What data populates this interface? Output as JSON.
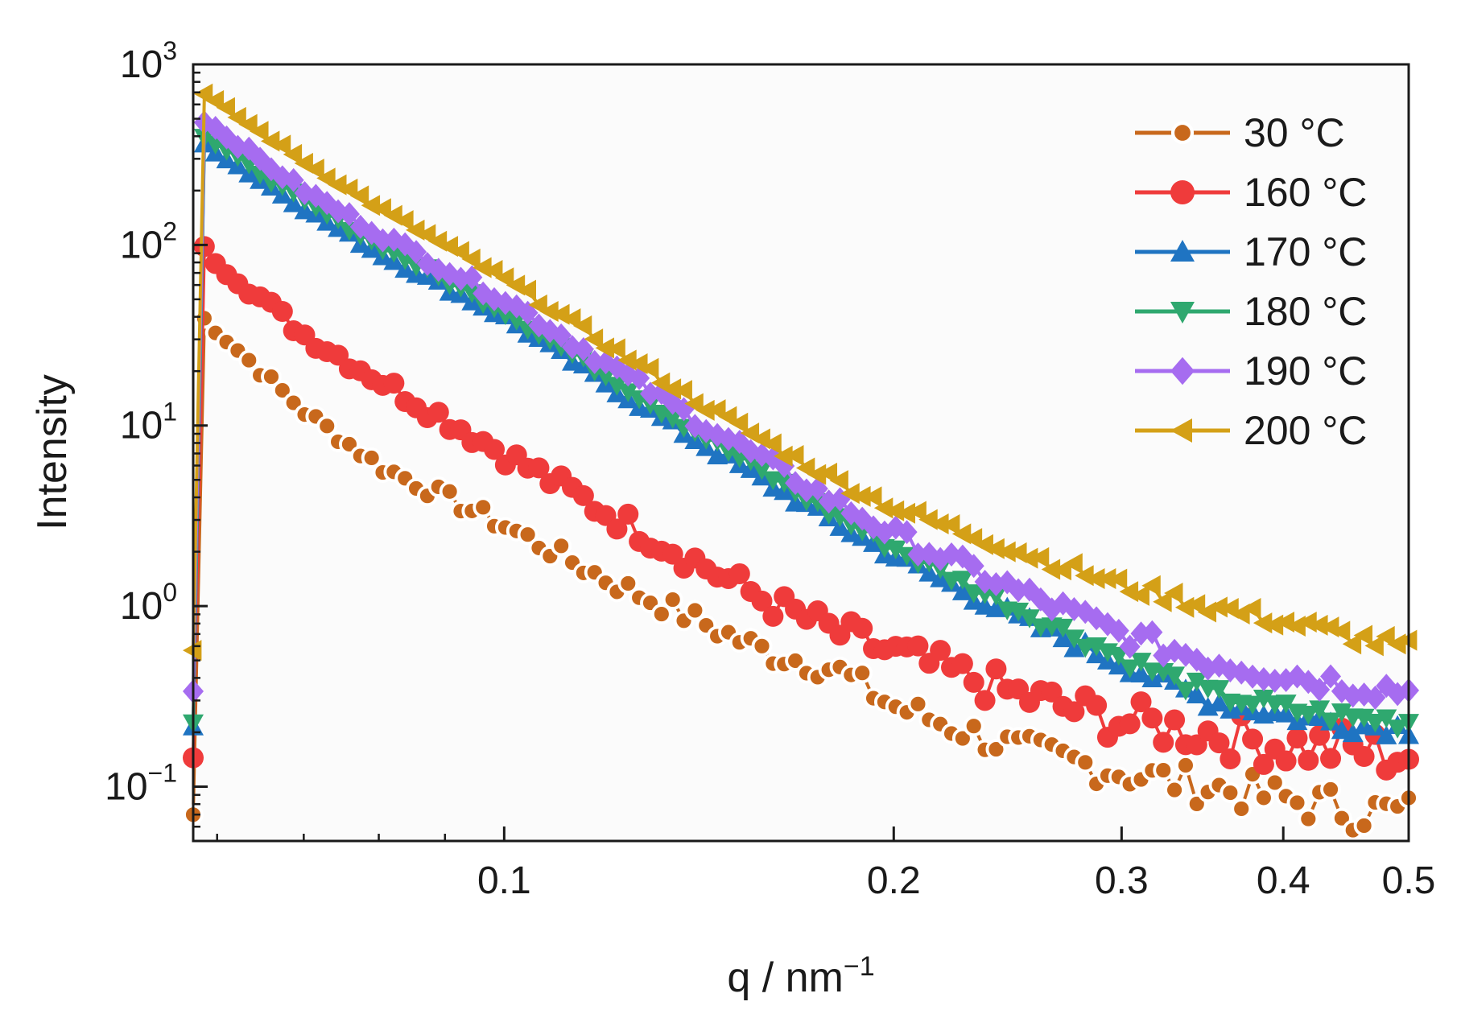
{
  "chart_data": {
    "type": "scatter",
    "title": "",
    "xlabel": "q / nm",
    "xlabel_sup": "−1",
    "ylabel": "Intensity",
    "xscale": "log",
    "yscale": "log",
    "xlim": [
      0.0575,
      0.5
    ],
    "ylim": [
      0.05,
      1000
    ],
    "x_ticks": [
      {
        "value": 0.1,
        "label": "0.1"
      },
      {
        "value": 0.2,
        "label": "0.2"
      },
      {
        "value": 0.3,
        "label": "0.3"
      },
      {
        "value": 0.4,
        "label": "0.4"
      },
      {
        "value": 0.5,
        "label": "0.5"
      }
    ],
    "y_ticks": [
      {
        "value": 1000,
        "base": "10",
        "exp": "3"
      },
      {
        "value": 100,
        "base": "10",
        "exp": "2"
      },
      {
        "value": 10,
        "base": "10",
        "exp": "1"
      },
      {
        "value": 1,
        "base": "10",
        "exp": "0"
      },
      {
        "value": 0.1,
        "base": "10",
        "exp": "−1"
      }
    ],
    "legend_position": "top-right",
    "series": [
      {
        "name": "30 °C",
        "color": "#c8681c",
        "marker": "circle-open",
        "points": [
          [
            0.058,
            42
          ],
          [
            0.07,
            12
          ],
          [
            0.08,
            6
          ],
          [
            0.1,
            2.8
          ],
          [
            0.12,
            1.4
          ],
          [
            0.14,
            0.85
          ],
          [
            0.16,
            0.55
          ],
          [
            0.18,
            0.45
          ],
          [
            0.2,
            0.28
          ],
          [
            0.25,
            0.16
          ],
          [
            0.3,
            0.12
          ],
          [
            0.35,
            0.1
          ],
          [
            0.4,
            0.085
          ],
          [
            0.45,
            0.075
          ],
          [
            0.5,
            0.07
          ]
        ]
      },
      {
        "name": "160 °C",
        "color": "#ef3b3b",
        "marker": "circle",
        "points": [
          [
            0.058,
            100
          ],
          [
            0.07,
            32
          ],
          [
            0.08,
            18
          ],
          [
            0.1,
            7
          ],
          [
            0.12,
            3.3
          ],
          [
            0.14,
            1.8
          ],
          [
            0.16,
            1.05
          ],
          [
            0.18,
            0.72
          ],
          [
            0.2,
            0.55
          ],
          [
            0.25,
            0.32
          ],
          [
            0.3,
            0.23
          ],
          [
            0.35,
            0.2
          ],
          [
            0.4,
            0.17
          ],
          [
            0.45,
            0.16
          ],
          [
            0.5,
            0.15
          ]
        ]
      },
      {
        "name": "170 °C",
        "color": "#1f74c2",
        "marker": "triangle-up",
        "points": [
          [
            0.058,
            380
          ],
          [
            0.07,
            160
          ],
          [
            0.08,
            90
          ],
          [
            0.1,
            40
          ],
          [
            0.12,
            17
          ],
          [
            0.14,
            8.5
          ],
          [
            0.16,
            4.8
          ],
          [
            0.18,
            2.9
          ],
          [
            0.2,
            1.9
          ],
          [
            0.25,
            0.85
          ],
          [
            0.3,
            0.48
          ],
          [
            0.35,
            0.3
          ],
          [
            0.4,
            0.25
          ],
          [
            0.45,
            0.22
          ],
          [
            0.5,
            0.21
          ]
        ]
      },
      {
        "name": "180 °C",
        "color": "#2fa86f",
        "marker": "triangle-down",
        "points": [
          [
            0.058,
            420
          ],
          [
            0.07,
            175
          ],
          [
            0.08,
            100
          ],
          [
            0.1,
            43
          ],
          [
            0.12,
            19
          ],
          [
            0.14,
            9.5
          ],
          [
            0.16,
            5.3
          ],
          [
            0.18,
            3.2
          ],
          [
            0.2,
            2.1
          ],
          [
            0.25,
            0.95
          ],
          [
            0.3,
            0.52
          ],
          [
            0.35,
            0.33
          ],
          [
            0.4,
            0.27
          ],
          [
            0.45,
            0.24
          ],
          [
            0.5,
            0.23
          ]
        ]
      },
      {
        "name": "190 °C",
        "color": "#a66cf0",
        "marker": "diamond",
        "points": [
          [
            0.058,
            520
          ],
          [
            0.07,
            200
          ],
          [
            0.08,
            115
          ],
          [
            0.1,
            50
          ],
          [
            0.12,
            22
          ],
          [
            0.14,
            11
          ],
          [
            0.16,
            6.2
          ],
          [
            0.18,
            3.8
          ],
          [
            0.2,
            2.5
          ],
          [
            0.25,
            1.2
          ],
          [
            0.3,
            0.7
          ],
          [
            0.35,
            0.5
          ],
          [
            0.4,
            0.42
          ],
          [
            0.45,
            0.37
          ],
          [
            0.5,
            0.34
          ]
        ]
      },
      {
        "name": "200 °C",
        "color": "#d4a017",
        "marker": "triangle-left",
        "points": [
          [
            0.058,
            720
          ],
          [
            0.07,
            290
          ],
          [
            0.08,
            160
          ],
          [
            0.1,
            65
          ],
          [
            0.12,
            28
          ],
          [
            0.14,
            14
          ],
          [
            0.16,
            8
          ],
          [
            0.18,
            5
          ],
          [
            0.2,
            3.5
          ],
          [
            0.25,
            2
          ],
          [
            0.3,
            1.3
          ],
          [
            0.35,
            1
          ],
          [
            0.4,
            0.82
          ],
          [
            0.45,
            0.68
          ],
          [
            0.5,
            0.58
          ]
        ]
      }
    ]
  }
}
